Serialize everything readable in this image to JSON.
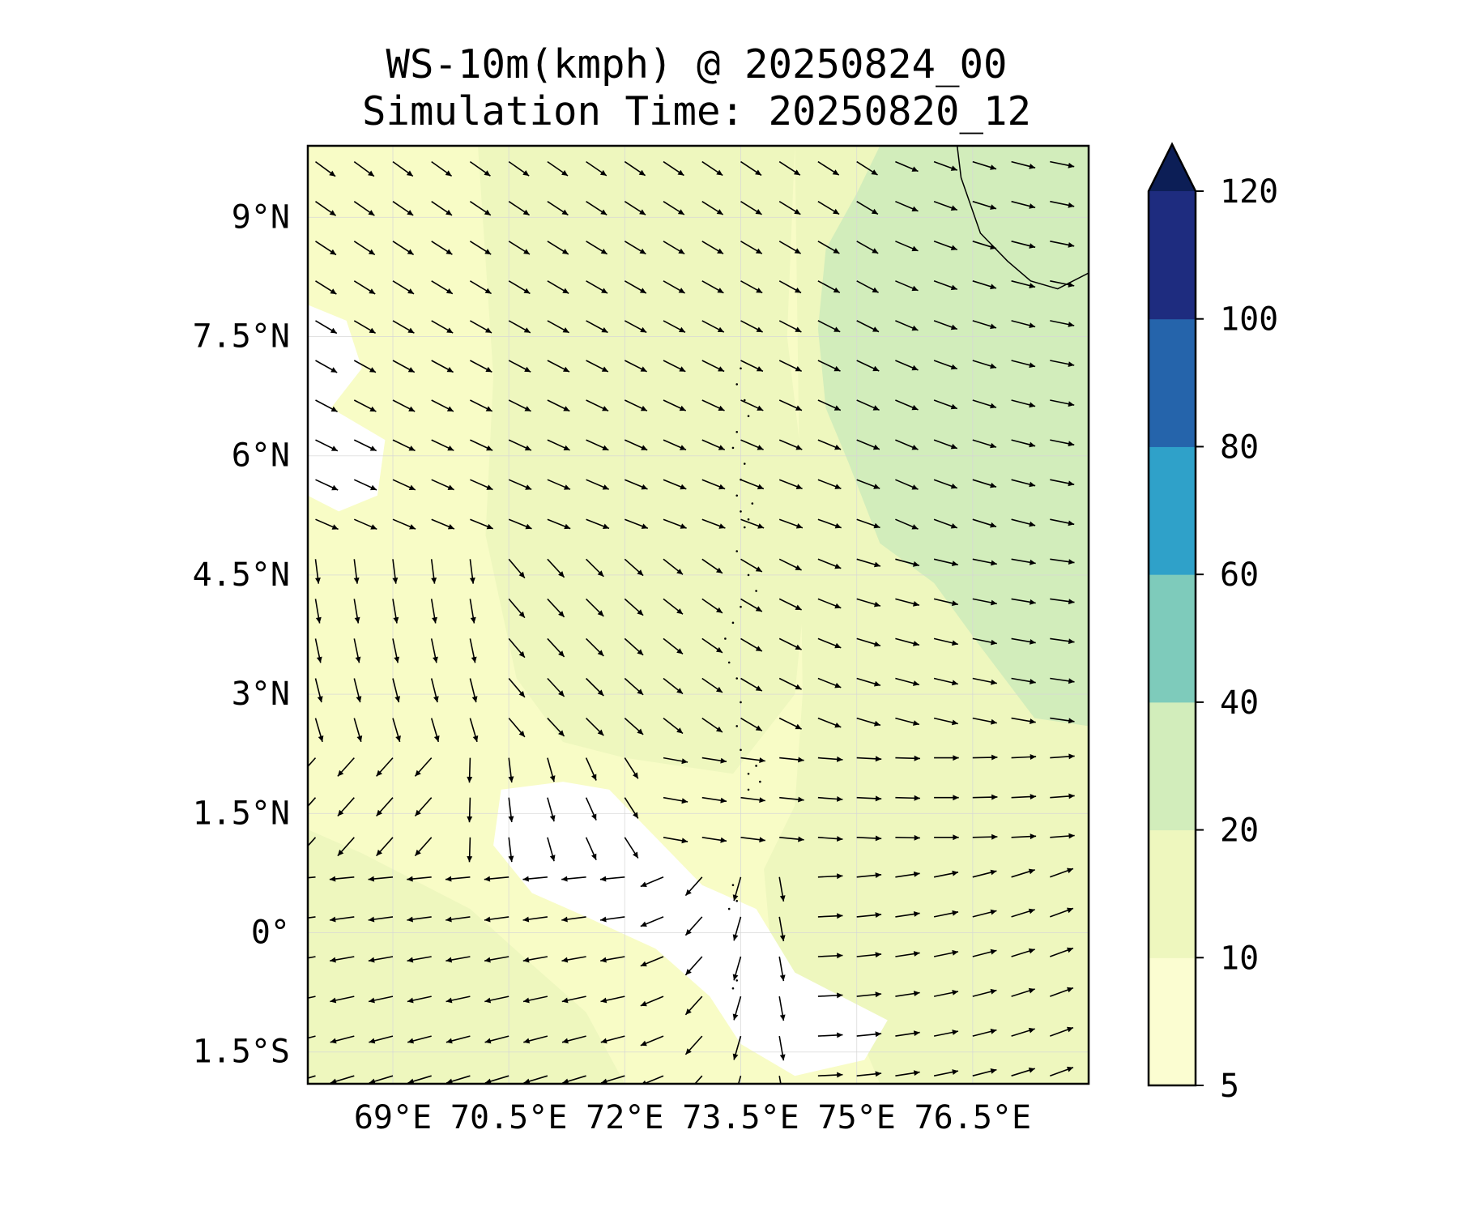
{
  "title": {
    "line1": "WS-10m(kmph) @ 20250824_00",
    "line2": "Simulation Time: 20250820_12"
  },
  "map": {
    "extent": {
      "lon_min": 67.9,
      "lon_max": 78.0,
      "lat_min": -1.9,
      "lat_max": 9.9
    },
    "lon_ticks": [
      {
        "value": 69,
        "label": "69°E"
      },
      {
        "value": 70.5,
        "label": "70.5°E"
      },
      {
        "value": 72,
        "label": "72°E"
      },
      {
        "value": 73.5,
        "label": "73.5°E"
      },
      {
        "value": 75,
        "label": "75°E"
      },
      {
        "value": 76.5,
        "label": "76.5°E"
      }
    ],
    "lat_ticks": [
      {
        "value": 9,
        "label": "9°N"
      },
      {
        "value": 7.5,
        "label": "7.5°N"
      },
      {
        "value": 6,
        "label": "6°N"
      },
      {
        "value": 4.5,
        "label": "4.5°N"
      },
      {
        "value": 3,
        "label": "3°N"
      },
      {
        "value": 1.5,
        "label": "1.5°N"
      },
      {
        "value": 0,
        "label": "0°"
      },
      {
        "value": -1.5,
        "label": "1.5°S"
      }
    ],
    "gridlines": true,
    "background_color": "#f8fcc6",
    "field_regions": [
      {
        "name": "ws-10-20-west",
        "level": "10-20",
        "color": "#eef7be",
        "polygon": [
          [
            70.1,
            9.9
          ],
          [
            74.2,
            9.9
          ],
          [
            74.1,
            7.5
          ],
          [
            74.4,
            5.0
          ],
          [
            74.2,
            3.0
          ],
          [
            73.4,
            2.0
          ],
          [
            72.0,
            2.2
          ],
          [
            71.2,
            2.4
          ],
          [
            70.6,
            3.2
          ],
          [
            70.2,
            5.0
          ],
          [
            70.3,
            7.0
          ]
        ]
      },
      {
        "name": "ws-10-20-east",
        "level": "10-20",
        "color": "#eef7be",
        "polygon": [
          [
            74.2,
            9.9
          ],
          [
            78.0,
            9.9
          ],
          [
            78.0,
            -1.9
          ],
          [
            75.3,
            -1.9
          ],
          [
            75.0,
            -1.2
          ],
          [
            73.9,
            -0.3
          ],
          [
            73.8,
            0.8
          ],
          [
            74.2,
            1.6
          ],
          [
            74.3,
            3.0
          ]
        ]
      },
      {
        "name": "ws-10-20-southwest",
        "level": "10-20",
        "color": "#eef7be",
        "polygon": [
          [
            67.9,
            1.3
          ],
          [
            68.6,
            1.0
          ],
          [
            70.0,
            0.3
          ],
          [
            70.8,
            -0.4
          ],
          [
            71.5,
            -1.0
          ],
          [
            72.0,
            -1.9
          ],
          [
            67.9,
            -1.9
          ]
        ]
      },
      {
        "name": "ws-20-40-northeast",
        "level": "20-40",
        "color": "#d2edbb",
        "polygon": [
          [
            75.3,
            9.9
          ],
          [
            78.0,
            9.9
          ],
          [
            78.0,
            2.6
          ],
          [
            77.3,
            2.7
          ],
          [
            76.6,
            3.6
          ],
          [
            76.0,
            4.4
          ],
          [
            75.3,
            4.9
          ],
          [
            74.9,
            5.9
          ],
          [
            74.6,
            6.6
          ],
          [
            74.5,
            7.6
          ],
          [
            74.6,
            8.6
          ],
          [
            75.0,
            9.3
          ]
        ]
      },
      {
        "name": "ws-under-5-west",
        "level": "<5",
        "color": "#ffffff",
        "polygon": [
          [
            67.9,
            7.9
          ],
          [
            68.4,
            7.7
          ],
          [
            68.6,
            7.1
          ],
          [
            68.2,
            6.6
          ],
          [
            68.9,
            6.2
          ],
          [
            68.8,
            5.5
          ],
          [
            68.3,
            5.3
          ],
          [
            67.9,
            5.5
          ]
        ]
      },
      {
        "name": "ws-under-5-center",
        "level": "<5",
        "color": "#ffffff",
        "polygon": [
          [
            70.4,
            1.8
          ],
          [
            71.2,
            1.9
          ],
          [
            71.8,
            1.8
          ],
          [
            72.4,
            1.2
          ],
          [
            73.0,
            0.6
          ],
          [
            73.7,
            0.3
          ],
          [
            74.2,
            -0.5
          ],
          [
            74.8,
            -0.8
          ],
          [
            75.4,
            -1.1
          ],
          [
            75.1,
            -1.6
          ],
          [
            74.2,
            -1.8
          ],
          [
            73.5,
            -1.4
          ],
          [
            73.1,
            -0.8
          ],
          [
            72.4,
            -0.2
          ],
          [
            71.5,
            0.2
          ],
          [
            70.8,
            0.5
          ],
          [
            70.3,
            1.1
          ]
        ]
      }
    ],
    "coastline": [
      [
        76.3,
        9.9
      ],
      [
        76.35,
        9.5
      ],
      [
        76.6,
        8.8
      ],
      [
        76.95,
        8.45
      ],
      [
        77.25,
        8.2
      ],
      [
        77.6,
        8.1
      ],
      [
        78.0,
        8.3
      ]
    ],
    "islands": [
      [
        73.5,
        7.1
      ],
      [
        73.45,
        6.9
      ],
      [
        73.55,
        6.7
      ],
      [
        73.6,
        6.5
      ],
      [
        73.45,
        6.3
      ],
      [
        73.4,
        6.1
      ],
      [
        73.55,
        5.9
      ],
      [
        73.5,
        5.7
      ],
      [
        73.45,
        5.5
      ],
      [
        73.5,
        5.3
      ],
      [
        73.55,
        5.1
      ],
      [
        73.45,
        4.8
      ],
      [
        73.6,
        4.5
      ],
      [
        73.7,
        4.3
      ],
      [
        73.5,
        4.1
      ],
      [
        73.4,
        3.9
      ],
      [
        73.3,
        3.7
      ],
      [
        73.35,
        3.4
      ],
      [
        73.45,
        3.2
      ],
      [
        73.5,
        2.9
      ],
      [
        73.45,
        2.6
      ],
      [
        73.5,
        2.3
      ],
      [
        73.6,
        2.0
      ],
      [
        73.6,
        1.8
      ],
      [
        73.4,
        0.6
      ],
      [
        73.45,
        0.4
      ],
      [
        73.35,
        0.3
      ],
      [
        73.45,
        -0.6
      ],
      [
        73.4,
        -0.7
      ],
      [
        73.7,
        2.1
      ],
      [
        73.75,
        1.9
      ],
      [
        73.65,
        5.4
      ],
      [
        73.6,
        5.2
      ]
    ]
  },
  "wind_field": {
    "lon_start": 68.0,
    "lon_step": 0.5,
    "lon_count": 20,
    "lat_start": 9.7,
    "lat_step": -0.5,
    "lat_count": 24,
    "arrow_length_deg": 0.32
  },
  "colorbar": {
    "levels": [
      5,
      10,
      20,
      40,
      60,
      80,
      100,
      120
    ],
    "colors": [
      "#fbfdd1",
      "#eef7be",
      "#d2edbb",
      "#7ecbbb",
      "#2fa1c9",
      "#2564ab",
      "#1e2c7f"
    ],
    "extend_color": "#0c1e56",
    "tick_labels": [
      "5",
      "10",
      "20",
      "40",
      "60",
      "80",
      "100",
      "120"
    ]
  }
}
